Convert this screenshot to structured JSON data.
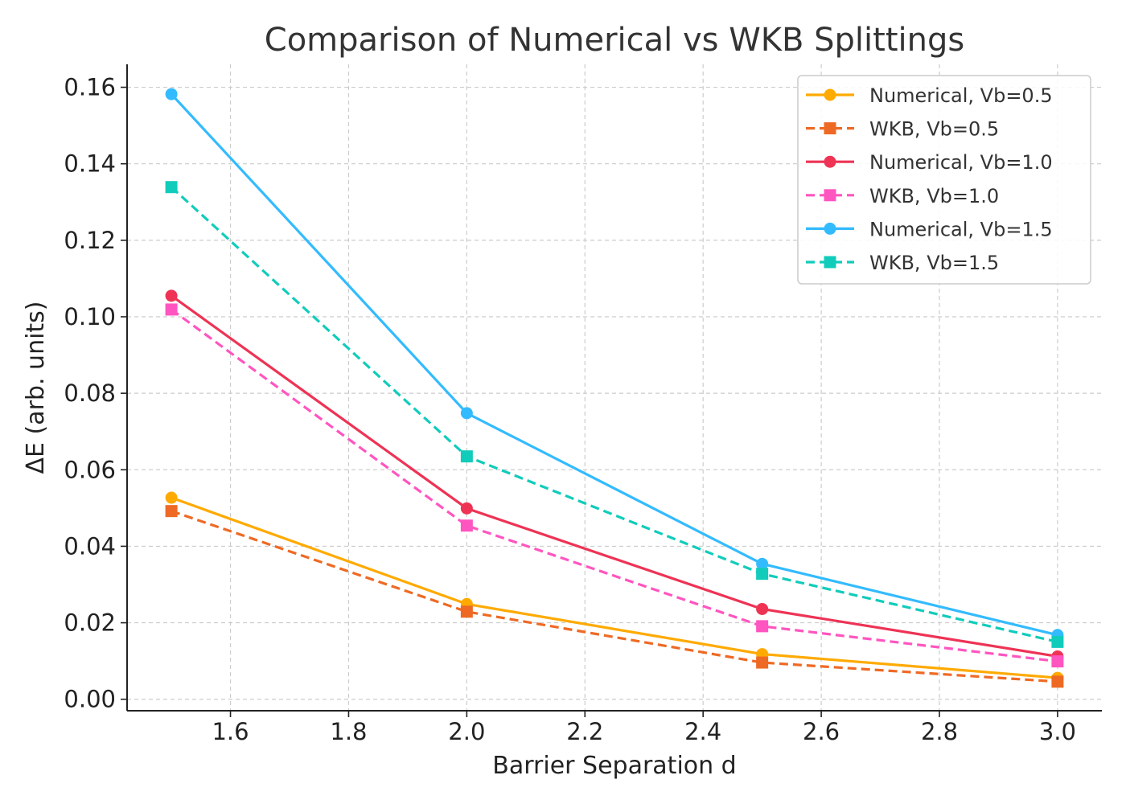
{
  "chart_data": {
    "type": "line",
    "title": "Comparison of Numerical vs WKB Splittings",
    "xlabel": "Barrier Separation d",
    "ylabel": "ΔE (arb. units)",
    "xlim": [
      1.425,
      3.075
    ],
    "ylim": [
      -0.003,
      0.166
    ],
    "x": [
      1.5,
      2.0,
      2.5,
      3.0
    ],
    "xticks": [
      1.6,
      1.8,
      2.0,
      2.2,
      2.4,
      2.6,
      2.8,
      3.0
    ],
    "xtick_labels": [
      "1.6",
      "1.8",
      "2.0",
      "2.2",
      "2.4",
      "2.6",
      "2.8",
      "3.0"
    ],
    "yticks": [
      0.0,
      0.02,
      0.04,
      0.06,
      0.08,
      0.1,
      0.12,
      0.14,
      0.16
    ],
    "ytick_labels": [
      "0.00",
      "0.02",
      "0.04",
      "0.06",
      "0.08",
      "0.10",
      "0.12",
      "0.14",
      "0.16"
    ],
    "grid": true,
    "legend_position": "top-right",
    "series": [
      {
        "name": "Numerical, Vb=0.5",
        "values": [
          0.0527,
          0.0249,
          0.0118,
          0.0056
        ],
        "color": "#FFAA00",
        "style": "solid",
        "marker": "circle"
      },
      {
        "name": "WKB, Vb=0.5",
        "values": [
          0.0492,
          0.0229,
          0.0096,
          0.0046
        ],
        "color": "#EE6A24",
        "style": "dashed",
        "marker": "square"
      },
      {
        "name": "Numerical, Vb=1.0",
        "values": [
          0.1055,
          0.0499,
          0.0236,
          0.0112
        ],
        "color": "#EE3355",
        "style": "solid",
        "marker": "circle"
      },
      {
        "name": "WKB, Vb=1.0",
        "values": [
          0.1019,
          0.0454,
          0.0191,
          0.0099
        ],
        "color": "#FF55C0",
        "style": "dashed",
        "marker": "square"
      },
      {
        "name": "Numerical, Vb=1.5",
        "values": [
          0.1582,
          0.0748,
          0.0354,
          0.0168
        ],
        "color": "#33BBFF",
        "style": "solid",
        "marker": "circle"
      },
      {
        "name": "WKB, Vb=1.5",
        "values": [
          0.1339,
          0.0635,
          0.0328,
          0.015
        ],
        "color": "#11CCBB",
        "style": "dashed",
        "marker": "square"
      }
    ]
  }
}
